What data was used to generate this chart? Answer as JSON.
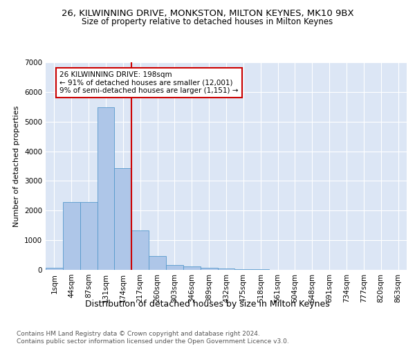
{
  "title1": "26, KILWINNING DRIVE, MONKSTON, MILTON KEYNES, MK10 9BX",
  "title2": "Size of property relative to detached houses in Milton Keynes",
  "xlabel": "Distribution of detached houses by size in Milton Keynes",
  "ylabel": "Number of detached properties",
  "footnote": "Contains HM Land Registry data © Crown copyright and database right 2024.\nContains public sector information licensed under the Open Government Licence v3.0.",
  "categories": [
    "1sqm",
    "44sqm",
    "87sqm",
    "131sqm",
    "174sqm",
    "217sqm",
    "260sqm",
    "303sqm",
    "346sqm",
    "389sqm",
    "432sqm",
    "475sqm",
    "518sqm",
    "561sqm",
    "604sqm",
    "648sqm",
    "691sqm",
    "734sqm",
    "777sqm",
    "820sqm",
    "863sqm"
  ],
  "values": [
    80,
    2280,
    2280,
    5480,
    3430,
    1320,
    460,
    175,
    110,
    75,
    50,
    35,
    20,
    10,
    5,
    3,
    2,
    1,
    1,
    0,
    0
  ],
  "bar_color": "#aec6e8",
  "bar_edge_color": "#5599cc",
  "vline_x_index": 5,
  "vline_color": "#cc0000",
  "annotation_text": "26 KILWINNING DRIVE: 198sqm\n← 91% of detached houses are smaller (12,001)\n9% of semi-detached houses are larger (1,151) →",
  "annotation_box_color": "#cc0000",
  "ylim": [
    0,
    7000
  ],
  "yticks": [
    0,
    1000,
    2000,
    3000,
    4000,
    5000,
    6000,
    7000
  ],
  "bg_color": "#dce6f5",
  "title1_fontsize": 9.5,
  "title2_fontsize": 8.5,
  "xlabel_fontsize": 9,
  "ylabel_fontsize": 8,
  "tick_fontsize": 7.5,
  "annotation_fontsize": 7.5,
  "footnote_fontsize": 6.5
}
